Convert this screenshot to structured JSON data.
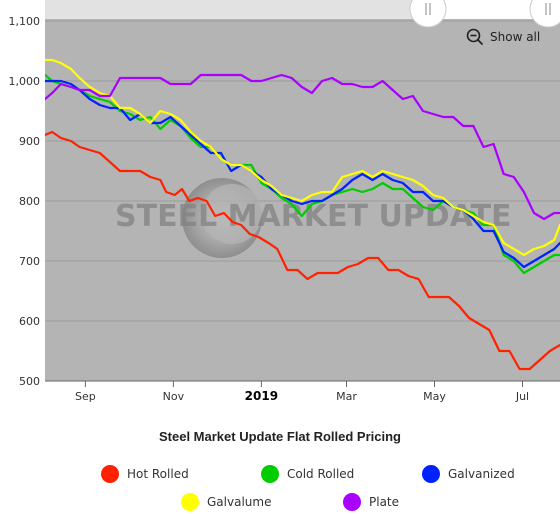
{
  "controls": {
    "show_all_label": "Show all",
    "zoom_icon": "zoom-out-icon"
  },
  "watermark": {
    "text": "STEEL MARKET UPDATE"
  },
  "chart_data": {
    "type": "line",
    "title": "Steel Market Update Flat Rolled Pricing",
    "xlabel": "",
    "ylabel": "",
    "ylim": [
      500,
      1100
    ],
    "yticks": [
      500,
      600,
      700,
      800,
      900,
      1000,
      1100
    ],
    "ytick_labels": [
      "500",
      "600",
      "700",
      "800",
      "900",
      "1,000",
      "1,100"
    ],
    "xlim": [
      "2018-08-04",
      "2019-07-27"
    ],
    "xticks": [
      {
        "date": "2018-09-01",
        "label": "Sep",
        "bold": false
      },
      {
        "date": "2018-11-01",
        "label": "Nov",
        "bold": false
      },
      {
        "date": "2019-01-01",
        "label": "2019",
        "bold": true
      },
      {
        "date": "2019-03-01",
        "label": "Mar",
        "bold": false
      },
      {
        "date": "2019-05-01",
        "label": "May",
        "bold": false
      },
      {
        "date": "2019-07-01",
        "label": "Jul",
        "bold": false
      }
    ],
    "grid": true,
    "legend_position": "bottom",
    "colors": {
      "plot_bg": "#b4b4b4",
      "hot_rolled": "#ff2200",
      "cold_rolled": "#00cc00",
      "galvanized": "#0022ff",
      "galvalume": "#ffff00",
      "plate": "#aa00ff"
    },
    "series": [
      {
        "name": "Hot Rolled",
        "color": "#ff2200",
        "points": [
          [
            "2018-08-04",
            910
          ],
          [
            "2018-08-09",
            915
          ],
          [
            "2018-08-15",
            905
          ],
          [
            "2018-08-22",
            900
          ],
          [
            "2018-08-28",
            890
          ],
          [
            "2018-09-04",
            885
          ],
          [
            "2018-09-11",
            880
          ],
          [
            "2018-09-18",
            865
          ],
          [
            "2018-09-25",
            850
          ],
          [
            "2018-10-02",
            850
          ],
          [
            "2018-10-09",
            850
          ],
          [
            "2018-10-16",
            840
          ],
          [
            "2018-10-23",
            835
          ],
          [
            "2018-10-27",
            815
          ],
          [
            "2018-11-02",
            810
          ],
          [
            "2018-11-07",
            820
          ],
          [
            "2018-11-12",
            800
          ],
          [
            "2018-11-18",
            805
          ],
          [
            "2018-11-24",
            800
          ],
          [
            "2018-11-30",
            775
          ],
          [
            "2018-12-06",
            780
          ],
          [
            "2018-12-12",
            765
          ],
          [
            "2018-12-18",
            760
          ],
          [
            "2018-12-24",
            745
          ],
          [
            "2018-12-30",
            740
          ],
          [
            "2019-01-06",
            730
          ],
          [
            "2019-01-12",
            720
          ],
          [
            "2019-01-19",
            685
          ],
          [
            "2019-01-26",
            685
          ],
          [
            "2019-02-02",
            670
          ],
          [
            "2019-02-09",
            680
          ],
          [
            "2019-02-16",
            680
          ],
          [
            "2019-02-23",
            680
          ],
          [
            "2019-03-02",
            690
          ],
          [
            "2019-03-09",
            695
          ],
          [
            "2019-03-16",
            705
          ],
          [
            "2019-03-23",
            705
          ],
          [
            "2019-03-30",
            685
          ],
          [
            "2019-04-06",
            685
          ],
          [
            "2019-04-13",
            675
          ],
          [
            "2019-04-20",
            670
          ],
          [
            "2019-04-27",
            640
          ],
          [
            "2019-05-04",
            640
          ],
          [
            "2019-05-11",
            640
          ],
          [
            "2019-05-18",
            625
          ],
          [
            "2019-05-25",
            605
          ],
          [
            "2019-06-01",
            595
          ],
          [
            "2019-06-08",
            585
          ],
          [
            "2019-06-15",
            550
          ],
          [
            "2019-06-22",
            550
          ],
          [
            "2019-06-29",
            520
          ],
          [
            "2019-07-06",
            520
          ],
          [
            "2019-07-13",
            535
          ],
          [
            "2019-07-20",
            550
          ],
          [
            "2019-07-27",
            560
          ]
        ]
      },
      {
        "name": "Cold Rolled",
        "color": "#00cc00",
        "points": [
          [
            "2018-08-04",
            1010
          ],
          [
            "2018-08-09",
            1000
          ],
          [
            "2018-08-15",
            995
          ],
          [
            "2018-08-22",
            990
          ],
          [
            "2018-08-28",
            985
          ],
          [
            "2018-09-04",
            975
          ],
          [
            "2018-09-11",
            970
          ],
          [
            "2018-09-18",
            965
          ],
          [
            "2018-09-25",
            950
          ],
          [
            "2018-10-02",
            945
          ],
          [
            "2018-10-09",
            935
          ],
          [
            "2018-10-16",
            940
          ],
          [
            "2018-10-23",
            920
          ],
          [
            "2018-10-30",
            935
          ],
          [
            "2018-11-06",
            925
          ],
          [
            "2018-11-13",
            905
          ],
          [
            "2018-11-20",
            890
          ],
          [
            "2018-11-27",
            890
          ],
          [
            "2018-12-04",
            870
          ],
          [
            "2018-12-11",
            860
          ],
          [
            "2018-12-18",
            860
          ],
          [
            "2018-12-25",
            860
          ],
          [
            "2019-01-01",
            830
          ],
          [
            "2019-01-08",
            820
          ],
          [
            "2019-01-15",
            805
          ],
          [
            "2019-01-22",
            795
          ],
          [
            "2019-01-29",
            775
          ],
          [
            "2019-02-05",
            795
          ],
          [
            "2019-02-12",
            800
          ],
          [
            "2019-02-19",
            810
          ],
          [
            "2019-02-26",
            815
          ],
          [
            "2019-03-05",
            820
          ],
          [
            "2019-03-12",
            815
          ],
          [
            "2019-03-19",
            820
          ],
          [
            "2019-03-26",
            830
          ],
          [
            "2019-04-02",
            820
          ],
          [
            "2019-04-09",
            820
          ],
          [
            "2019-04-16",
            805
          ],
          [
            "2019-04-23",
            790
          ],
          [
            "2019-04-30",
            785
          ],
          [
            "2019-05-07",
            800
          ],
          [
            "2019-05-14",
            790
          ],
          [
            "2019-05-21",
            785
          ],
          [
            "2019-05-28",
            780
          ],
          [
            "2019-06-04",
            760
          ],
          [
            "2019-06-11",
            760
          ],
          [
            "2019-06-18",
            710
          ],
          [
            "2019-06-25",
            700
          ],
          [
            "2019-07-02",
            680
          ],
          [
            "2019-07-09",
            690
          ],
          [
            "2019-07-16",
            700
          ],
          [
            "2019-07-23",
            710
          ],
          [
            "2019-07-27",
            710
          ]
        ]
      },
      {
        "name": "Galvanized",
        "color": "#0022ff",
        "points": [
          [
            "2018-08-04",
            1000
          ],
          [
            "2018-08-09",
            1000
          ],
          [
            "2018-08-15",
            1000
          ],
          [
            "2018-08-22",
            995
          ],
          [
            "2018-08-28",
            985
          ],
          [
            "2018-09-04",
            970
          ],
          [
            "2018-09-11",
            960
          ],
          [
            "2018-09-18",
            955
          ],
          [
            "2018-09-25",
            955
          ],
          [
            "2018-10-02",
            935
          ],
          [
            "2018-10-09",
            945
          ],
          [
            "2018-10-16",
            930
          ],
          [
            "2018-10-23",
            930
          ],
          [
            "2018-10-30",
            940
          ],
          [
            "2018-11-06",
            925
          ],
          [
            "2018-11-13",
            910
          ],
          [
            "2018-11-20",
            895
          ],
          [
            "2018-11-27",
            880
          ],
          [
            "2018-12-04",
            880
          ],
          [
            "2018-12-11",
            850
          ],
          [
            "2018-12-18",
            860
          ],
          [
            "2018-12-25",
            850
          ],
          [
            "2019-01-01",
            840
          ],
          [
            "2019-01-08",
            820
          ],
          [
            "2019-01-15",
            810
          ],
          [
            "2019-01-22",
            800
          ],
          [
            "2019-01-29",
            795
          ],
          [
            "2019-02-05",
            800
          ],
          [
            "2019-02-12",
            800
          ],
          [
            "2019-02-19",
            810
          ],
          [
            "2019-02-26",
            820
          ],
          [
            "2019-03-05",
            835
          ],
          [
            "2019-03-12",
            845
          ],
          [
            "2019-03-19",
            835
          ],
          [
            "2019-03-26",
            845
          ],
          [
            "2019-04-02",
            835
          ],
          [
            "2019-04-09",
            830
          ],
          [
            "2019-04-16",
            815
          ],
          [
            "2019-04-23",
            815
          ],
          [
            "2019-04-30",
            800
          ],
          [
            "2019-05-07",
            800
          ],
          [
            "2019-05-14",
            790
          ],
          [
            "2019-05-21",
            785
          ],
          [
            "2019-05-28",
            770
          ],
          [
            "2019-06-04",
            750
          ],
          [
            "2019-06-11",
            750
          ],
          [
            "2019-06-18",
            715
          ],
          [
            "2019-06-25",
            705
          ],
          [
            "2019-07-02",
            690
          ],
          [
            "2019-07-09",
            700
          ],
          [
            "2019-07-16",
            710
          ],
          [
            "2019-07-23",
            720
          ],
          [
            "2019-07-27",
            730
          ]
        ]
      },
      {
        "name": "Galvalume",
        "color": "#ffff00",
        "points": [
          [
            "2018-08-04",
            1035
          ],
          [
            "2018-08-09",
            1035
          ],
          [
            "2018-08-15",
            1030
          ],
          [
            "2018-08-22",
            1020
          ],
          [
            "2018-08-28",
            1005
          ],
          [
            "2018-09-04",
            990
          ],
          [
            "2018-09-11",
            980
          ],
          [
            "2018-09-18",
            975
          ],
          [
            "2018-09-25",
            955
          ],
          [
            "2018-10-02",
            955
          ],
          [
            "2018-10-09",
            945
          ],
          [
            "2018-10-16",
            930
          ],
          [
            "2018-10-23",
            950
          ],
          [
            "2018-10-30",
            945
          ],
          [
            "2018-11-06",
            935
          ],
          [
            "2018-11-13",
            915
          ],
          [
            "2018-11-20",
            900
          ],
          [
            "2018-11-27",
            890
          ],
          [
            "2018-12-04",
            870
          ],
          [
            "2018-12-11",
            860
          ],
          [
            "2018-12-18",
            860
          ],
          [
            "2018-12-25",
            850
          ],
          [
            "2019-01-01",
            835
          ],
          [
            "2019-01-08",
            825
          ],
          [
            "2019-01-15",
            810
          ],
          [
            "2019-01-22",
            805
          ],
          [
            "2019-01-29",
            800
          ],
          [
            "2019-02-05",
            810
          ],
          [
            "2019-02-12",
            815
          ],
          [
            "2019-02-19",
            815
          ],
          [
            "2019-02-26",
            840
          ],
          [
            "2019-03-05",
            845
          ],
          [
            "2019-03-12",
            850
          ],
          [
            "2019-03-19",
            840
          ],
          [
            "2019-03-26",
            850
          ],
          [
            "2019-04-02",
            845
          ],
          [
            "2019-04-09",
            840
          ],
          [
            "2019-04-16",
            835
          ],
          [
            "2019-04-23",
            825
          ],
          [
            "2019-04-30",
            810
          ],
          [
            "2019-05-07",
            805
          ],
          [
            "2019-05-14",
            790
          ],
          [
            "2019-05-21",
            785
          ],
          [
            "2019-05-28",
            775
          ],
          [
            "2019-06-04",
            765
          ],
          [
            "2019-06-11",
            760
          ],
          [
            "2019-06-18",
            730
          ],
          [
            "2019-06-25",
            720
          ],
          [
            "2019-07-02",
            710
          ],
          [
            "2019-07-09",
            720
          ],
          [
            "2019-07-16",
            725
          ],
          [
            "2019-07-23",
            735
          ],
          [
            "2019-07-27",
            760
          ]
        ]
      },
      {
        "name": "Plate",
        "color": "#aa00ff",
        "points": [
          [
            "2018-08-04",
            970
          ],
          [
            "2018-08-09",
            980
          ],
          [
            "2018-08-15",
            995
          ],
          [
            "2018-08-22",
            990
          ],
          [
            "2018-08-28",
            985
          ],
          [
            "2018-09-04",
            985
          ],
          [
            "2018-09-11",
            975
          ],
          [
            "2018-09-18",
            975
          ],
          [
            "2018-09-25",
            1005
          ],
          [
            "2018-10-02",
            1005
          ],
          [
            "2018-10-09",
            1005
          ],
          [
            "2018-10-16",
            1005
          ],
          [
            "2018-10-23",
            1005
          ],
          [
            "2018-10-30",
            995
          ],
          [
            "2018-11-06",
            995
          ],
          [
            "2018-11-13",
            995
          ],
          [
            "2018-11-20",
            1010
          ],
          [
            "2018-11-27",
            1010
          ],
          [
            "2018-12-04",
            1010
          ],
          [
            "2018-12-11",
            1010
          ],
          [
            "2018-12-18",
            1010
          ],
          [
            "2018-12-25",
            1000
          ],
          [
            "2019-01-01",
            1000
          ],
          [
            "2019-01-08",
            1005
          ],
          [
            "2019-01-15",
            1010
          ],
          [
            "2019-01-22",
            1005
          ],
          [
            "2019-01-29",
            990
          ],
          [
            "2019-02-05",
            980
          ],
          [
            "2019-02-12",
            1000
          ],
          [
            "2019-02-19",
            1005
          ],
          [
            "2019-02-26",
            995
          ],
          [
            "2019-03-05",
            995
          ],
          [
            "2019-03-12",
            990
          ],
          [
            "2019-03-19",
            990
          ],
          [
            "2019-03-26",
            1000
          ],
          [
            "2019-04-02",
            985
          ],
          [
            "2019-04-09",
            970
          ],
          [
            "2019-04-16",
            975
          ],
          [
            "2019-04-23",
            950
          ],
          [
            "2019-04-30",
            945
          ],
          [
            "2019-05-07",
            940
          ],
          [
            "2019-05-14",
            940
          ],
          [
            "2019-05-21",
            925
          ],
          [
            "2019-05-28",
            925
          ],
          [
            "2019-06-04",
            890
          ],
          [
            "2019-06-11",
            895
          ],
          [
            "2019-06-18",
            845
          ],
          [
            "2019-06-25",
            840
          ],
          [
            "2019-07-02",
            815
          ],
          [
            "2019-07-09",
            780
          ],
          [
            "2019-07-16",
            770
          ],
          [
            "2019-07-23",
            780
          ],
          [
            "2019-07-27",
            780
          ]
        ]
      }
    ]
  }
}
